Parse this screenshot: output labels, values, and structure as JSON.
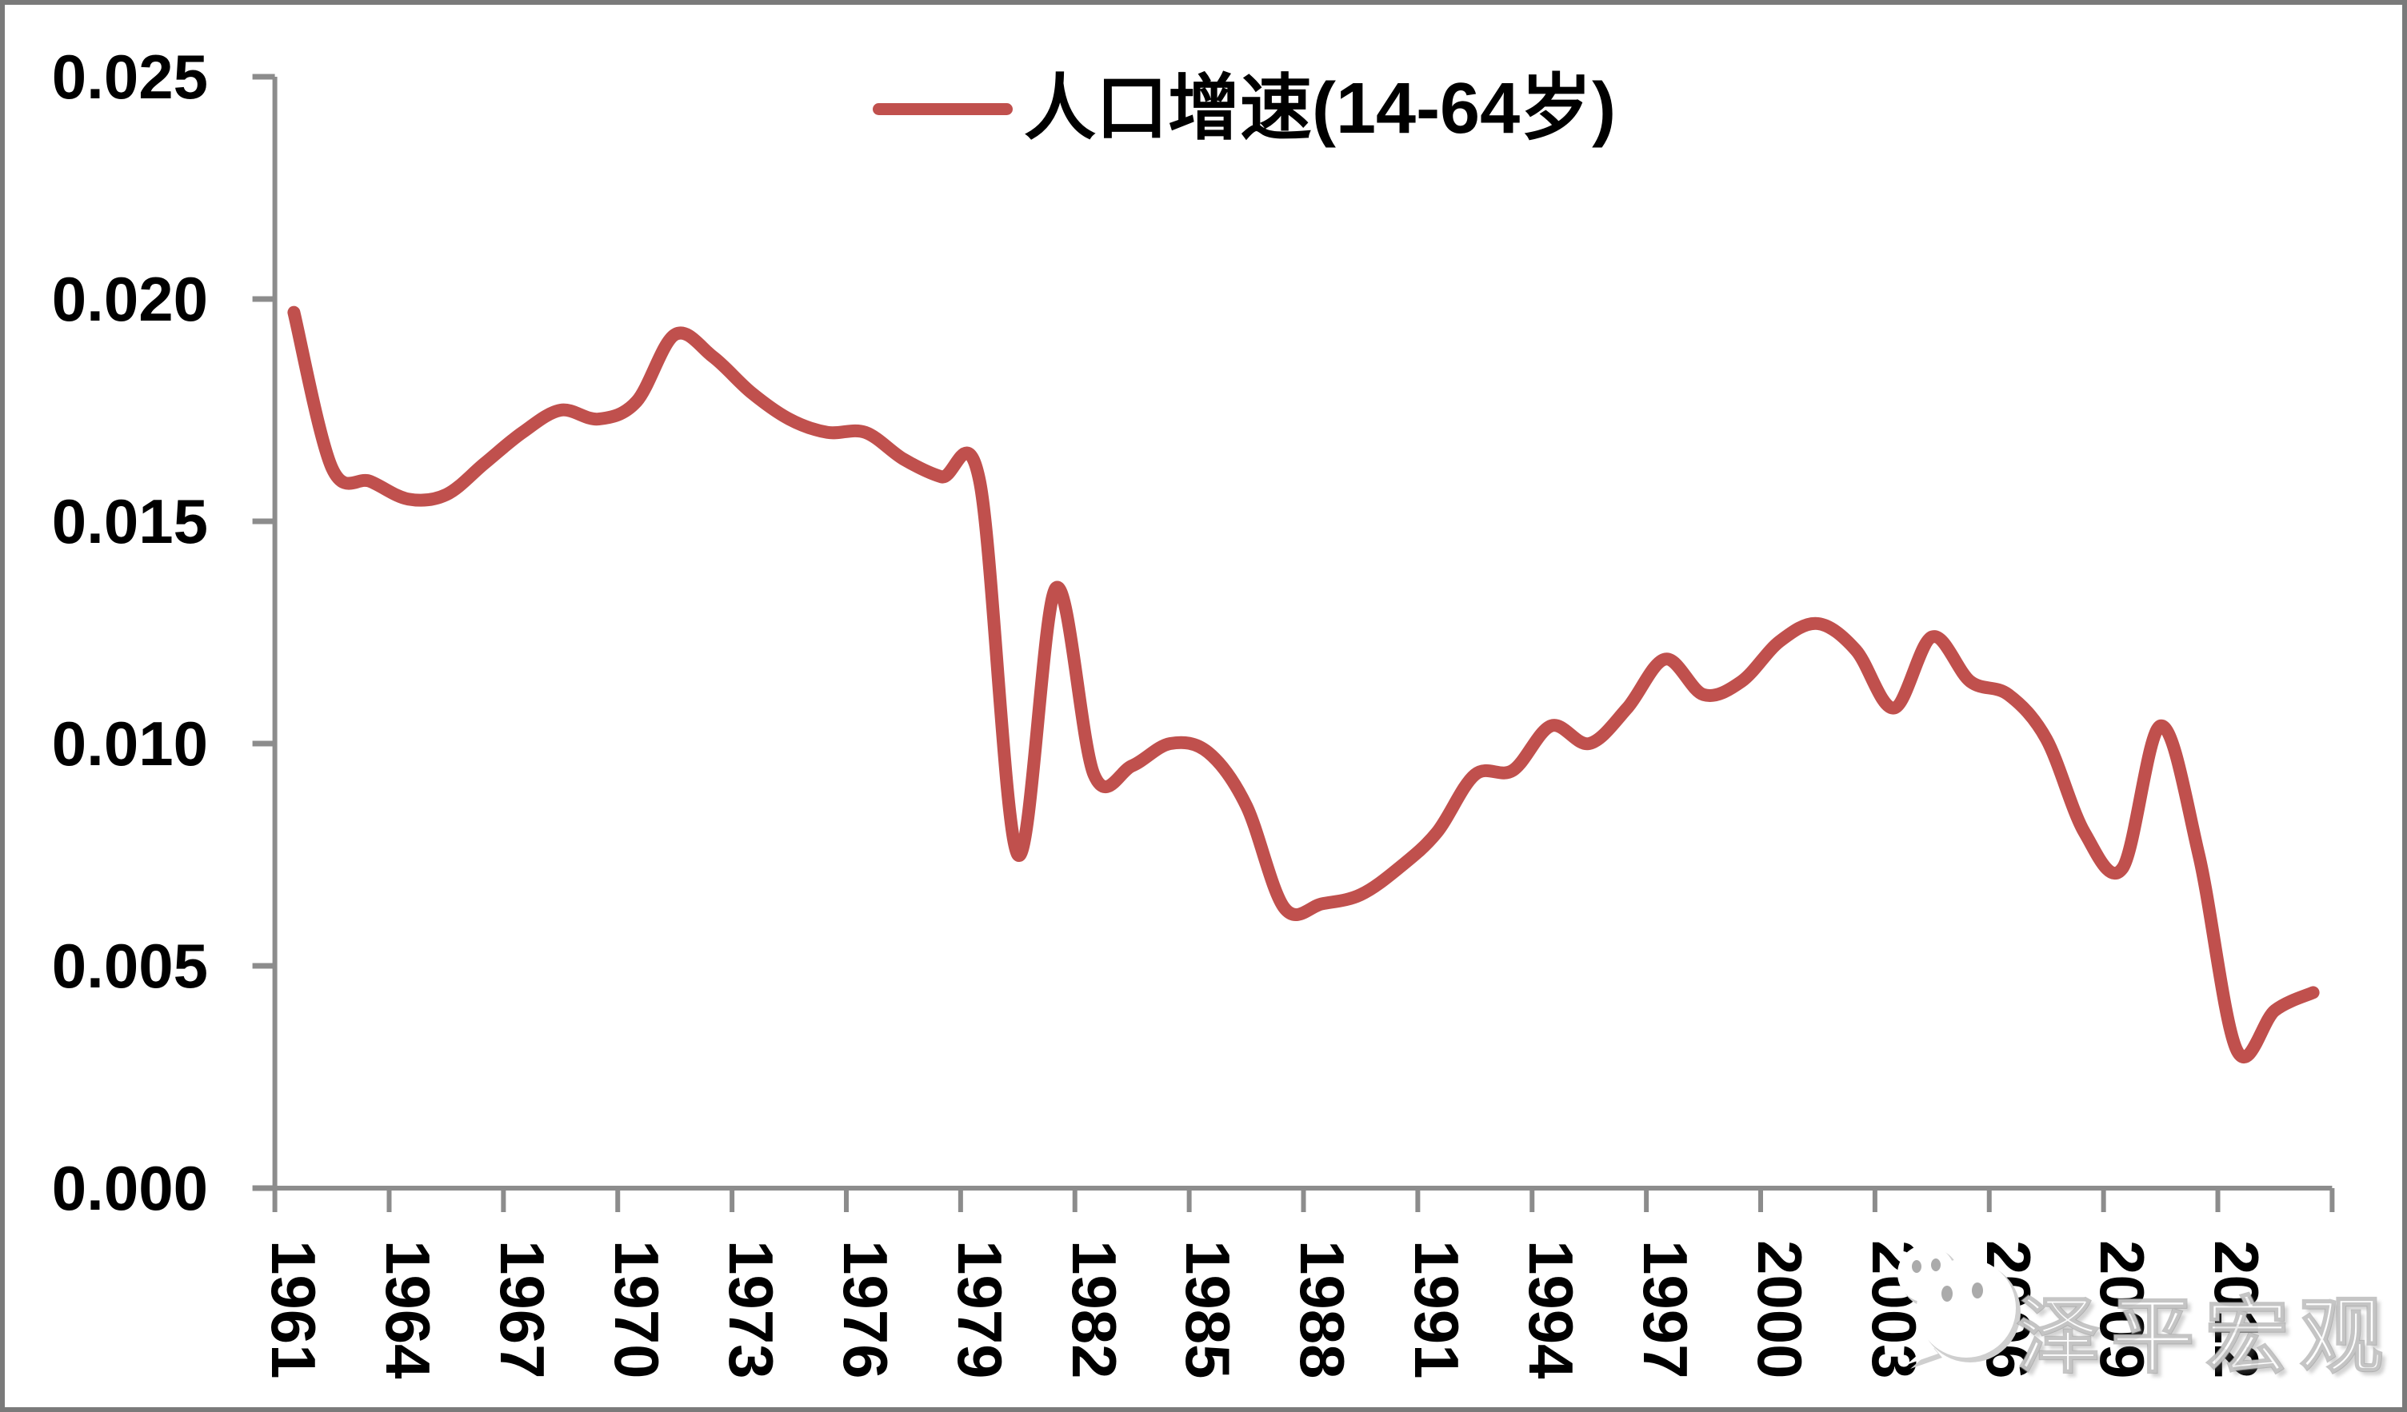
{
  "chart_data": {
    "type": "line",
    "title": "",
    "xlabel": "",
    "ylabel": "",
    "grid": "off",
    "legend": {
      "position": "top-center",
      "label": "人口增速(14-64岁)"
    },
    "ylim": [
      0.0,
      0.025
    ],
    "y_tick_step": 0.005,
    "y_tick_labels": [
      "0.000",
      "0.005",
      "0.010",
      "0.015",
      "0.020",
      "0.025"
    ],
    "x_tick_labels": [
      "1961",
      "1964",
      "1967",
      "1970",
      "1973",
      "1976",
      "1979",
      "1982",
      "1985",
      "1988",
      "1991",
      "1994",
      "1997",
      "2000",
      "2003",
      "2006",
      "2009",
      "2012"
    ],
    "x_label_rotation_deg": 90,
    "series": [
      {
        "name": "人口增速(14-64岁)",
        "color": "#C0504D",
        "x": [
          1961,
          1962,
          1963,
          1964,
          1965,
          1966,
          1967,
          1968,
          1969,
          1970,
          1971,
          1972,
          1973,
          1974,
          1975,
          1976,
          1977,
          1978,
          1979,
          1980,
          1981,
          1982,
          1983,
          1984,
          1985,
          1986,
          1987,
          1988,
          1989,
          1990,
          1991,
          1992,
          1993,
          1994,
          1995,
          1996,
          1997,
          1998,
          1999,
          2000,
          2001,
          2002,
          2003,
          2004,
          2005,
          2006,
          2007,
          2008,
          2009,
          2010,
          2011,
          2012,
          2013,
          2014
        ],
        "values": [
          0.0197,
          0.0162,
          0.0159,
          0.0155,
          0.0156,
          0.0163,
          0.017,
          0.0175,
          0.0173,
          0.0177,
          0.0192,
          0.0187,
          0.0179,
          0.0173,
          0.017,
          0.017,
          0.0164,
          0.016,
          0.0159,
          0.0075,
          0.0135,
          0.0093,
          0.0095,
          0.01,
          0.0098,
          0.0086,
          0.0063,
          0.0064,
          0.0066,
          0.0072,
          0.008,
          0.0093,
          0.0094,
          0.0104,
          0.01,
          0.0108,
          0.0119,
          0.0111,
          0.0114,
          0.0123,
          0.0127,
          0.0121,
          0.0108,
          0.0124,
          0.0114,
          0.0111,
          0.0101,
          0.008,
          0.0072,
          0.0104,
          0.0075,
          0.0031,
          0.004,
          0.0044
        ]
      }
    ],
    "colors": {
      "series_red": "#C0504D",
      "axis_gray": "#8C8C8C",
      "label_black": "#000000",
      "background": "#FFFFFF",
      "frame_border_gray": "#7A7A7A"
    }
  },
  "watermark": {
    "text": "泽平宏观",
    "icon": "wechat-icon"
  }
}
